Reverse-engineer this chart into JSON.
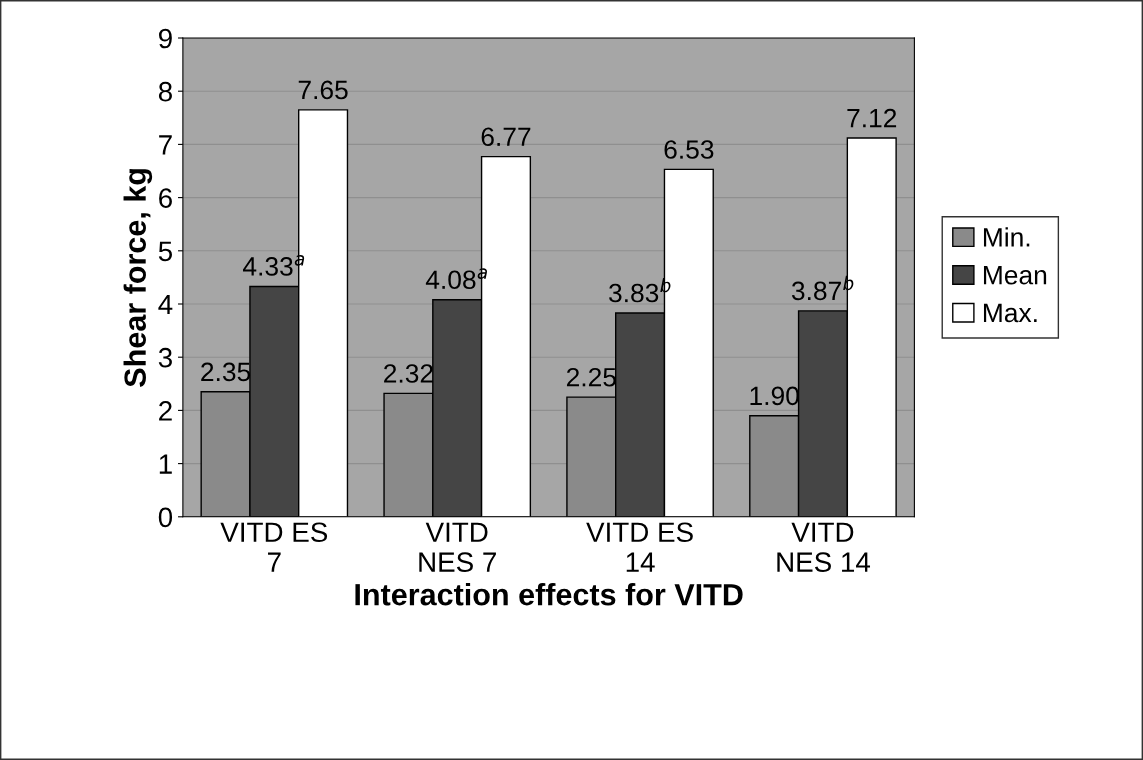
{
  "chart_data": {
    "type": "bar",
    "xlabel": "Interaction effects for VITD",
    "ylabel": "Shear force, kg",
    "categories": [
      "VITD ES\n7",
      "VITD\nNES 7",
      "VITD ES\n14",
      "VITD\nNES 14"
    ],
    "series": [
      {
        "name": "Min.",
        "color": "#8a8a8a",
        "values": [
          2.35,
          2.32,
          2.25,
          1.9
        ],
        "value_labels": [
          "2.35",
          "2.32",
          "2.25",
          "1.90"
        ]
      },
      {
        "name": "Mean",
        "color": "#454545",
        "values": [
          4.33,
          4.08,
          3.83,
          3.87
        ],
        "value_labels": [
          "4.33$^{a}$",
          "4.08$^{a}$",
          "3.83$^{b}$",
          "3.87$^{b}$"
        ]
      },
      {
        "name": "Max.",
        "color": "#ffffff",
        "values": [
          7.65,
          6.77,
          6.53,
          7.12
        ],
        "value_labels": [
          "7.65",
          "6.77",
          "6.53",
          "7.12"
        ]
      }
    ],
    "ylim": [
      0,
      9
    ],
    "yticks": [
      0,
      1,
      2,
      3,
      4,
      5,
      6,
      7,
      8,
      9
    ],
    "grid": "y",
    "legend": "right"
  }
}
